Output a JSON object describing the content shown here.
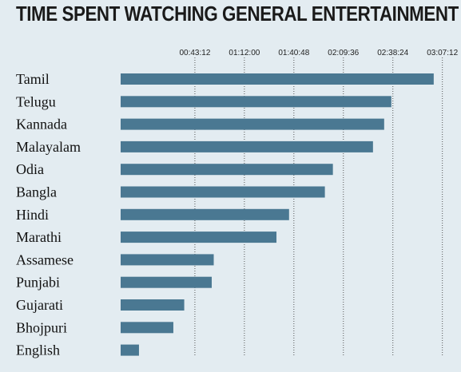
{
  "chart_data": {
    "type": "bar",
    "orientation": "horizontal",
    "title": "TIME SPENT WATCHING GENERAL ENTERTAINMENT",
    "xlabel": "",
    "ylabel": "",
    "x_axis_position": "top",
    "xlim_seconds": [
      0,
      11520
    ],
    "tick_labels": [
      "00:43:12",
      "01:12:00",
      "01:40:48",
      "02:09:36",
      "02:38:24",
      "03:07:12"
    ],
    "tick_values_seconds": [
      2592,
      4320,
      6048,
      7776,
      9504,
      11232
    ],
    "grid": "vertical dotted",
    "bar_color": "#4a7892",
    "categories": [
      "Tamil",
      "Telugu",
      "Kannada",
      "Malayalam",
      "Odia",
      "Bangla",
      "Hindi",
      "Marathi",
      "Assamese",
      "Punjabi",
      "Gujarati",
      "Bhojpuri",
      "English"
    ],
    "values_seconds": [
      10930,
      9450,
      9200,
      8810,
      7410,
      7130,
      5880,
      5440,
      3250,
      3180,
      2220,
      1840,
      640
    ]
  }
}
